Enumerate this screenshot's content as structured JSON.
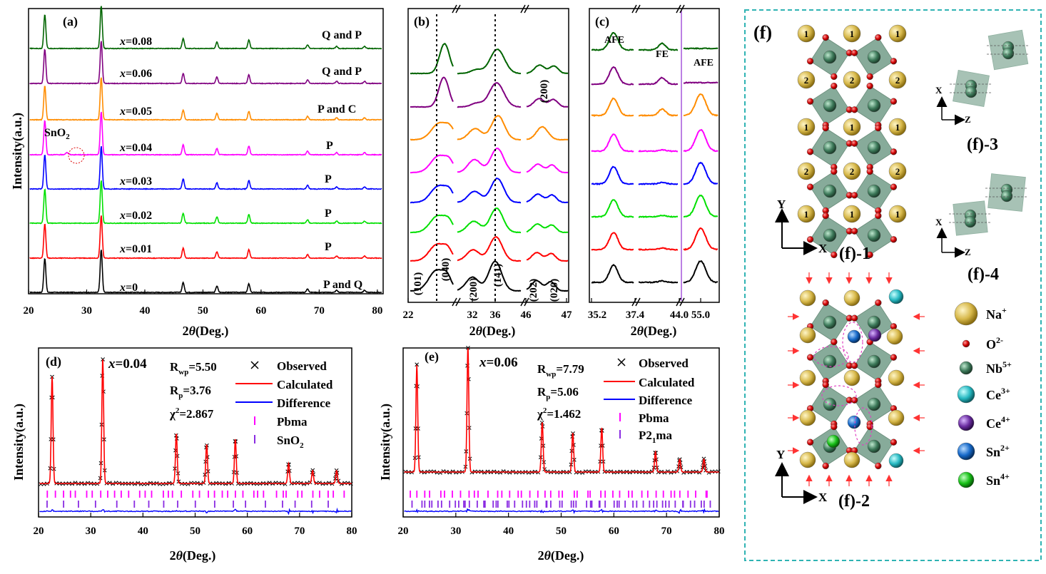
{
  "colors": {
    "x0": "#000000",
    "x001": "#ff0000",
    "x002": "#00e000",
    "x003": "#0000ff",
    "x004": "#ff00ff",
    "x005": "#ff8c00",
    "x006": "#800080",
    "x008": "#006400",
    "frame_f": "#2fb3b3",
    "octahedron": "#5f8f78",
    "na": "#d7b84a",
    "o": "#d10000",
    "nb": "#3d7a5a",
    "ce3": "#27b9c2",
    "ce4": "#6a2ca0",
    "sn2": "#1669c9",
    "sn4": "#18c018"
  },
  "panel_a": {
    "label": "(a)",
    "ylabel": "Intensity(a.u.)",
    "xlabel_prefix": "2",
    "xlabel_theta": "θ",
    "xlabel_suffix": "(Deg.)",
    "xticks": [
      "20",
      "30",
      "40",
      "50",
      "60",
      "70",
      "80"
    ],
    "sno2_main": "SnO",
    "sno2_sub": "2",
    "rows": [
      {
        "x": "x",
        "val": "=0",
        "phase": "P and Q",
        "color_key": "x0"
      },
      {
        "x": "x",
        "val": "=0.01",
        "phase": "P",
        "color_key": "x001"
      },
      {
        "x": "x",
        "val": "=0.02",
        "phase": "P",
        "color_key": "x002"
      },
      {
        "x": "x",
        "val": "=0.03",
        "phase": "P",
        "color_key": "x003"
      },
      {
        "x": "x",
        "val": "=0.04",
        "phase": "P",
        "color_key": "x004"
      },
      {
        "x": "x",
        "val": "=0.05",
        "phase": "P and C",
        "color_key": "x005"
      },
      {
        "x": "x",
        "val": "=0.06",
        "phase": "Q and P",
        "color_key": "x006"
      },
      {
        "x": "x",
        "val": "=0.08",
        "phase": "Q and P",
        "color_key": "x008"
      }
    ]
  },
  "panel_b": {
    "label": "(b)",
    "xticks": [
      "22",
      "32",
      "36",
      "46",
      "47"
    ],
    "peaks": [
      "(101)",
      "(040)",
      "(200)",
      "(141)",
      "(202)",
      "(020)",
      "(200)"
    ]
  },
  "panel_c": {
    "label": "(c)",
    "xticks": [
      "35.2",
      "37.4",
      "44.0",
      "55.0"
    ],
    "regions": [
      "AFE",
      "FE",
      "AFE"
    ]
  },
  "panel_d": {
    "label": "(d)",
    "x": "x",
    "val": "=0.04",
    "rwp_main": "R",
    "rwp_sub": "wp",
    "rwp_val": "=5.50",
    "rp_main": "R",
    "rp_sub": "p",
    "rp_val": "=3.76",
    "chi_main": "χ",
    "chi_sup": "2",
    "chi_val": "=2.867",
    "legend": [
      "Observed",
      "Calculated",
      "Difference",
      "Pbma",
      "SnO"
    ],
    "legend_sub": "2",
    "xticks": [
      "20",
      "30",
      "40",
      "50",
      "60",
      "70",
      "80"
    ],
    "ylabel": "Intensity(a.u.)"
  },
  "panel_e": {
    "label": "(e)",
    "x": "x",
    "val": "=0.06",
    "rwp_main": "R",
    "rwp_sub": "wp",
    "rwp_val": "=7.79",
    "rp_main": "R",
    "rp_sub": "p",
    "rp_val": "=5.06",
    "chi_main": "χ",
    "chi_sup": "2",
    "chi_val": "=1.462",
    "legend": [
      "Observed",
      "Calculated",
      "Difference",
      "Pbma",
      "P2"
    ],
    "legend_p2_sub": "1",
    "legend_p2_tail": "ma",
    "xticks": [
      "20",
      "30",
      "40",
      "50",
      "60",
      "70",
      "80"
    ],
    "ylabel": "Intensity(a.u.)"
  },
  "panel_f": {
    "label": "(f)",
    "sub1": "(f)-1",
    "sub2": "(f)-2",
    "sub3": "(f)-3",
    "sub4": "(f)-4",
    "axis_y": "Y",
    "axis_x": "X",
    "axis_z": "Z",
    "site_labels": [
      "1",
      "2"
    ],
    "legend": [
      {
        "ion": "Na",
        "charge": "+"
      },
      {
        "ion": "O",
        "charge": "2-"
      },
      {
        "ion": "Nb",
        "charge": "5+"
      },
      {
        "ion": "Ce",
        "charge": "3+"
      },
      {
        "ion": "Ce",
        "charge": "4+"
      },
      {
        "ion": "Sn",
        "charge": "2+"
      },
      {
        "ion": "Sn",
        "charge": "4+"
      }
    ]
  }
}
